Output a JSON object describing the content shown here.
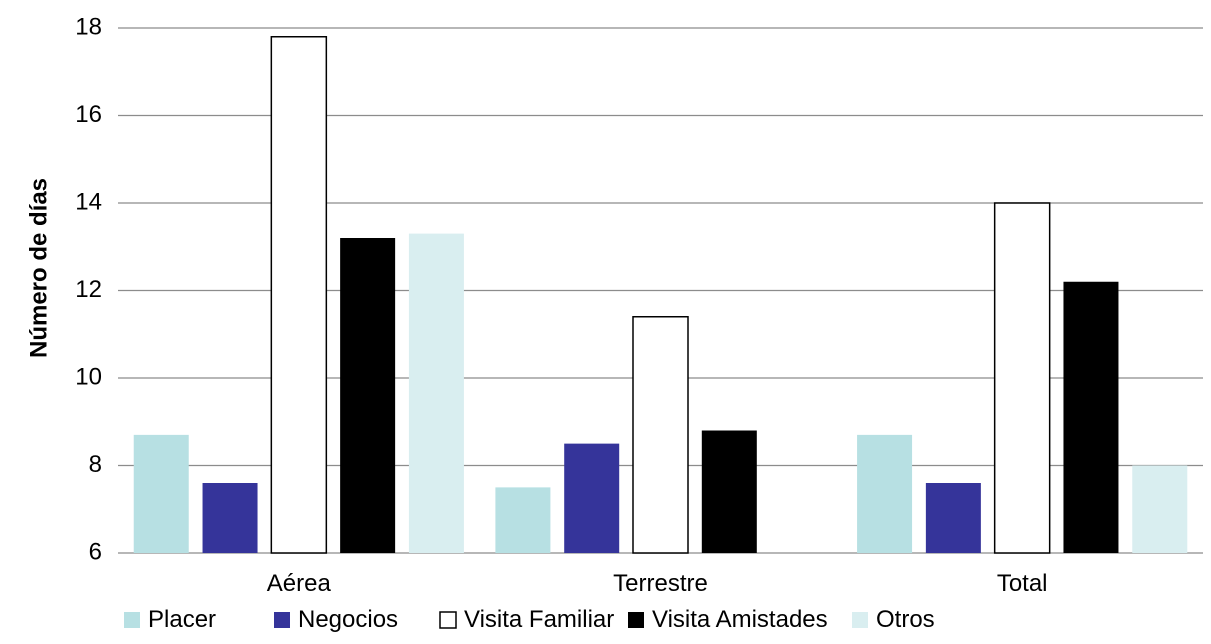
{
  "chart_data": {
    "type": "bar",
    "title": "",
    "xlabel": "",
    "ylabel": "Número de días",
    "ylim": [
      6,
      18
    ],
    "yticks": [
      "6",
      "8",
      "10",
      "12",
      "14",
      "16",
      "18"
    ],
    "grid": true,
    "legend_position": "bottom",
    "categories": [
      "Aérea",
      "Terrestre",
      "Total"
    ],
    "series": [
      {
        "name": "Placer",
        "color": "#b7e0e3",
        "values": [
          8.7,
          7.5,
          8.7
        ]
      },
      {
        "name": "Negocios",
        "color": "#35349a",
        "values": [
          7.6,
          8.5,
          7.6
        ]
      },
      {
        "name": "Visita Familiar",
        "color": "#ffffff",
        "outline": "#000000",
        "values": [
          17.8,
          11.4,
          14.0
        ]
      },
      {
        "name": "Visita Amistades",
        "color": "#000000",
        "values": [
          13.2,
          8.8,
          12.2
        ]
      },
      {
        "name": "Otros",
        "color": "#d9eef0",
        "values": [
          13.3,
          6.0,
          8.0
        ]
      }
    ]
  }
}
